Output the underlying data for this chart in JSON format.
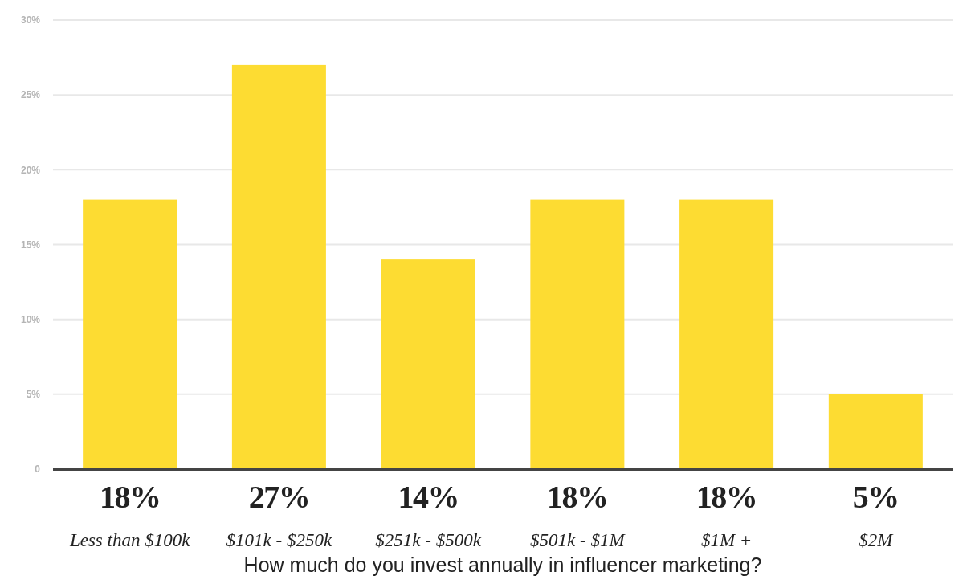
{
  "chart_data": {
    "type": "bar",
    "xlabel": "How much do you invest annually in influencer marketing?",
    "categories": [
      "Less than $100k",
      "$101k - $250k",
      "$251k - $500k",
      "$501k - $1M",
      "$1M +",
      "$2M"
    ],
    "values": [
      18,
      27,
      14,
      18,
      18,
      5
    ],
    "value_labels": [
      "18%",
      "27%",
      "14%",
      "18%",
      "18%",
      "5%"
    ],
    "color": "#fddc32",
    "ylim": [
      0,
      30
    ],
    "yticks": [
      {
        "value": 0,
        "label": "0"
      },
      {
        "value": 5,
        "label": "5%"
      },
      {
        "value": 10,
        "label": "10%"
      },
      {
        "value": 15,
        "label": "15%"
      },
      {
        "value": 20,
        "label": "20%"
      },
      {
        "value": 25,
        "label": "25%"
      },
      {
        "value": 30,
        "label": "30%"
      }
    ],
    "grid": "y"
  }
}
